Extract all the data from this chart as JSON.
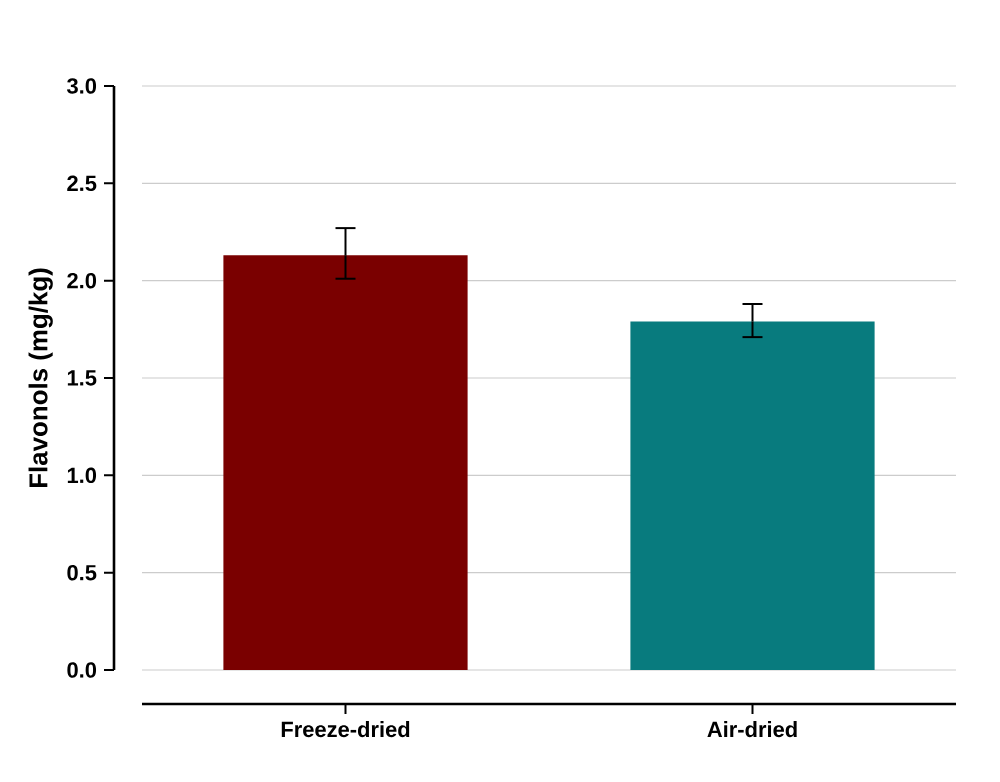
{
  "chart_data": {
    "type": "bar",
    "ylabel": "Flavonols (mg/kg)",
    "categories": [
      "Freeze-dried",
      "Air-dried"
    ],
    "values": [
      2.13,
      1.79
    ],
    "colors": [
      "#7a0000",
      "#087b7e"
    ],
    "errors": [
      [
        2.01,
        2.27
      ],
      [
        1.71,
        1.88
      ]
    ],
    "ylim": [
      0,
      3
    ],
    "yticks": [
      {
        "value": 0,
        "label": "0.0"
      },
      0.5,
      {
        "value": 1,
        "label": "1.0"
      },
      1.5,
      {
        "value": 2,
        "label": "2.0"
      },
      2.5,
      {
        "value": 3,
        "label": "3.0"
      }
    ],
    "grid": "y"
  }
}
